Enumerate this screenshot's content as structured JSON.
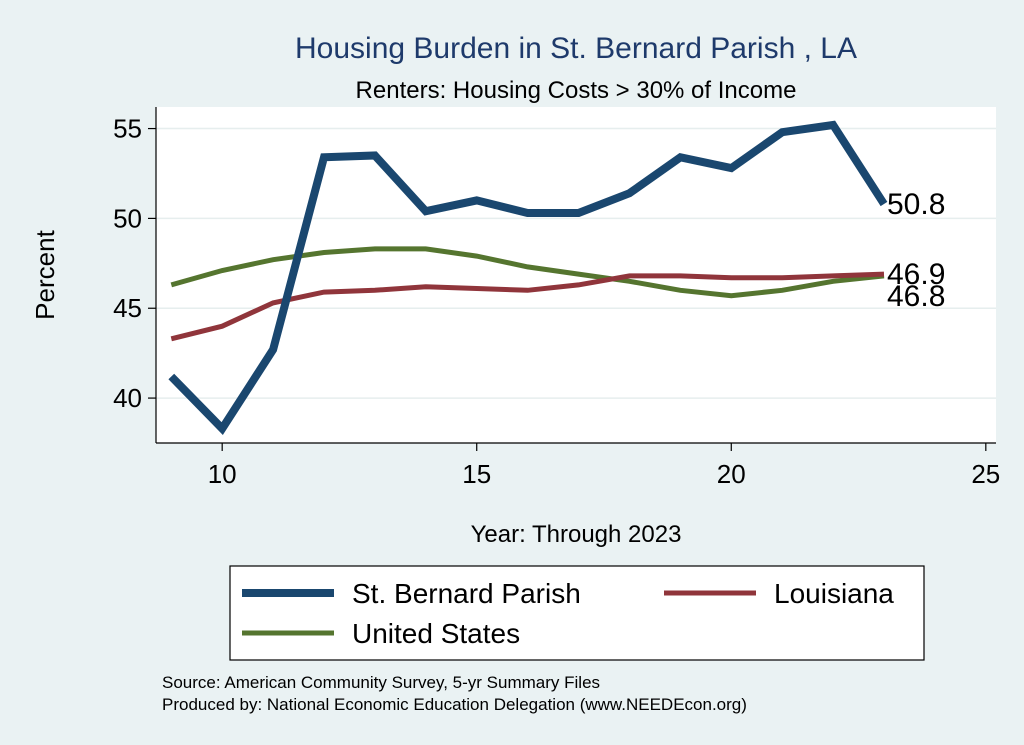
{
  "chart_data": {
    "type": "line",
    "title": "Housing Burden in St. Bernard Parish , LA",
    "subtitle": "Renters: Housing Costs > 30% of Income",
    "xlabel": "Year: Through 2023",
    "ylabel": "Percent",
    "xlim": [
      8.7,
      25.2
    ],
    "ylim": [
      37.5,
      56.2
    ],
    "xticks": [
      10,
      15,
      20,
      25
    ],
    "yticks": [
      40,
      45,
      50,
      55
    ],
    "grid": true,
    "legend_position": "bottom",
    "x": [
      9,
      10,
      11,
      12,
      13,
      14,
      15,
      16,
      17,
      18,
      19,
      20,
      21,
      22,
      23
    ],
    "series": [
      {
        "name": "St. Bernard Parish",
        "color": "#1a476f",
        "values": [
          41.2,
          38.3,
          42.7,
          53.4,
          53.5,
          50.4,
          51.0,
          50.3,
          50.3,
          51.4,
          53.4,
          52.8,
          54.8,
          55.2,
          50.8
        ],
        "end_label": "50.8"
      },
      {
        "name": "Louisiana",
        "color": "#90353b",
        "values": [
          43.3,
          44.0,
          45.3,
          45.9,
          46.0,
          46.2,
          46.1,
          46.0,
          46.3,
          46.8,
          46.8,
          46.7,
          46.7,
          46.8,
          46.9
        ],
        "end_label": "46.9"
      },
      {
        "name": "United States",
        "color": "#55752f",
        "values": [
          46.3,
          47.1,
          47.7,
          48.1,
          48.3,
          48.3,
          47.9,
          47.3,
          46.9,
          46.5,
          46.0,
          45.7,
          46.0,
          46.5,
          46.8
        ],
        "end_label": "46.8"
      }
    ]
  },
  "footer": {
    "source": "Source: American Community Survey, 5-yr Summary Files",
    "produced": "Produced by: National Economic Education Delegation (www.NEEDEcon.org)"
  }
}
